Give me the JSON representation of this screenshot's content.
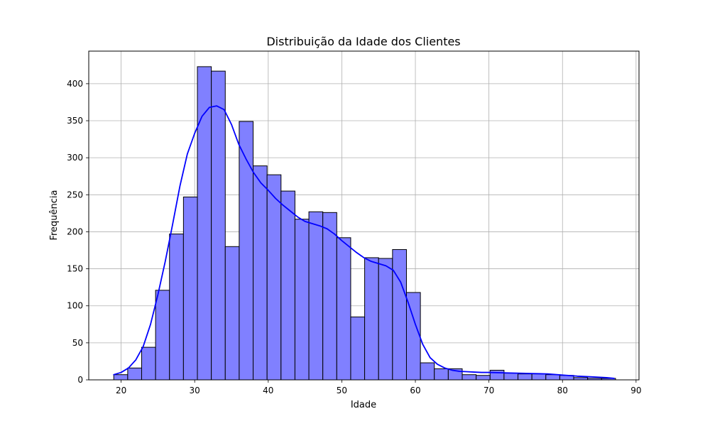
{
  "chart_data": {
    "type": "bar",
    "subtype": "histogram-with-kde",
    "title": "Distribuição da Idade dos Clientes",
    "xlabel": "Idade",
    "ylabel": "Frequência",
    "xlim": [
      15.6,
      90.4
    ],
    "ylim": [
      0,
      444
    ],
    "xticks": [
      20,
      30,
      40,
      50,
      60,
      70,
      80,
      90
    ],
    "yticks": [
      0,
      50,
      100,
      150,
      200,
      250,
      300,
      350,
      400
    ],
    "grid": true,
    "bar_color": "#8080ff",
    "bar_edge_color": "#000000",
    "line_color": "#0000ff",
    "bins": {
      "start": 19,
      "width": 1.8947,
      "counts": [
        7,
        16,
        44,
        121,
        197,
        247,
        423,
        417,
        180,
        349,
        289,
        277,
        255,
        217,
        227,
        226,
        192,
        85,
        165,
        164,
        176,
        118,
        23,
        15,
        15,
        7,
        6,
        13,
        9,
        8,
        8,
        7,
        6,
        3,
        2,
        2
      ]
    },
    "kde": {
      "x": [
        19,
        20,
        21,
        22,
        23,
        24,
        25,
        26,
        27,
        28,
        29,
        30,
        31,
        32,
        33,
        34,
        35,
        36,
        37,
        38,
        39,
        40,
        41,
        42,
        43,
        44,
        45,
        46,
        47,
        48,
        49,
        50,
        51,
        52,
        53,
        54,
        55,
        56,
        57,
        58,
        59,
        60,
        61,
        62,
        63,
        64,
        65,
        66,
        67,
        68,
        69,
        70,
        72,
        74,
        76,
        78,
        80,
        82,
        84,
        86,
        87
      ],
      "y": [
        7,
        10,
        16,
        27,
        45,
        75,
        115,
        160,
        210,
        262,
        305,
        333,
        356,
        368,
        370,
        365,
        345,
        318,
        298,
        280,
        266,
        256,
        245,
        236,
        228,
        220,
        214,
        211,
        208,
        204,
        197,
        188,
        180,
        172,
        165,
        160,
        157,
        154,
        148,
        132,
        105,
        75,
        48,
        30,
        21,
        16,
        13,
        11.5,
        11,
        10.5,
        10,
        10,
        9.5,
        9,
        8.5,
        8,
        6.5,
        5,
        4,
        3,
        2
      ]
    }
  }
}
